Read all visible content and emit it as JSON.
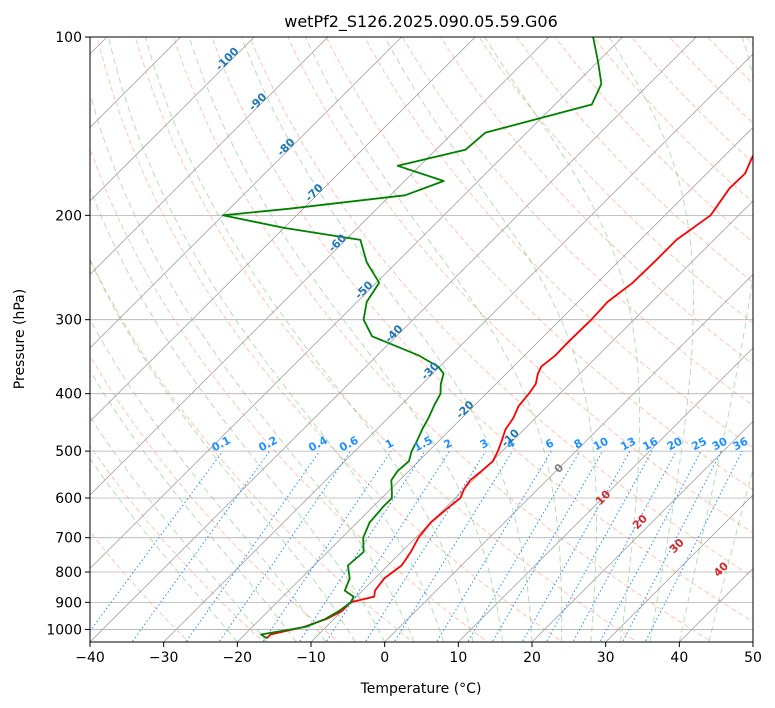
{
  "chart_data": {
    "type": "line",
    "title": "wetPf2_S126.2025.090.05.59.G06",
    "xlabel": "Temperature (°C)",
    "ylabel": "Pressure (hPa)",
    "xlim": [
      -40,
      50
    ],
    "ylim": [
      1050,
      100
    ],
    "y_scale": "log",
    "grid": true,
    "x_ticks": [
      "−40",
      "−30",
      "−20",
      "−10",
      "0",
      "10",
      "20",
      "30",
      "40",
      "50"
    ],
    "y_ticks": [
      "100",
      "200",
      "300",
      "400",
      "500",
      "600",
      "700",
      "800",
      "900",
      "1000"
    ],
    "x_tick_values": [
      -40,
      -30,
      -20,
      -10,
      0,
      10,
      20,
      30,
      40,
      50
    ],
    "y_tick_values": [
      100,
      200,
      300,
      400,
      500,
      600,
      700,
      800,
      900,
      1000
    ],
    "skew_factor": 35,
    "series": [
      {
        "color": "#ff0000",
        "p": [
          1035,
          1020,
          990,
          960,
          930,
          900,
          880,
          860,
          820,
          780,
          740,
          700,
          660,
          620,
          600,
          580,
          560,
          540,
          520,
          500,
          480,
          460,
          440,
          420,
          400,
          385,
          370,
          360,
          345,
          330,
          300,
          280,
          260,
          240,
          220,
          200,
          180,
          170,
          160,
          150,
          140,
          130,
          120,
          110,
          100
        ],
        "t": [
          -16.5,
          -16.5,
          -13.0,
          -11.0,
          -10.0,
          -10.0,
          -7.6,
          -8.3,
          -8.7,
          -8.1,
          -8.7,
          -9.6,
          -10.0,
          -9.6,
          -9.3,
          -10.0,
          -10.4,
          -10.1,
          -9.9,
          -10.6,
          -11.5,
          -12.5,
          -13.0,
          -13.9,
          -14.2,
          -14.6,
          -15.7,
          -16.2,
          -15.8,
          -15.9,
          -15.8,
          -16.0,
          -15.2,
          -15.1,
          -15.1,
          -13.8,
          -14.9,
          -14.8,
          -16.0,
          -17.0,
          -18.0,
          -19.0,
          -22.0,
          -25.6,
          -29.3
        ]
      },
      {
        "color": "#008000",
        "p": [
          1035,
          1020,
          990,
          960,
          930,
          900,
          880,
          860,
          820,
          780,
          740,
          700,
          660,
          620,
          600,
          580,
          560,
          540,
          520,
          500,
          480,
          460,
          440,
          420,
          400,
          385,
          370,
          360,
          345,
          320,
          300,
          280,
          260,
          240,
          220,
          210,
          200,
          195,
          185,
          175,
          165,
          155,
          145,
          130,
          120,
          110,
          100
        ],
        "t": [
          -16.5,
          -17.8,
          -12.8,
          -11.2,
          -10.4,
          -10.0,
          -10.4,
          -12.4,
          -13.4,
          -15.4,
          -15.1,
          -17.1,
          -18.3,
          -18.6,
          -18.6,
          -19.8,
          -21.1,
          -21.5,
          -21.3,
          -22.3,
          -23.0,
          -23.8,
          -24.5,
          -25.4,
          -26.2,
          -27.5,
          -28.5,
          -30.2,
          -34.3,
          -43.3,
          -46.7,
          -48.7,
          -49.6,
          -54.1,
          -58.0,
          -70.0,
          -80.0,
          -72.0,
          -58.0,
          -54.7,
          -63.0,
          -56.0,
          -55.6,
          -45.0,
          -46.5,
          -50.0,
          -54.0
        ]
      }
    ],
    "isotherm_labels": [
      "-100",
      "-90",
      "-80",
      "-70",
      "-60",
      "-50",
      "-40",
      "-30",
      "-20",
      "-10"
    ],
    "mixing_ratio_labels": [
      "0.1",
      "0.2",
      "0.4",
      "0.6",
      "1",
      "1.5",
      "2",
      "3",
      "4",
      "6",
      "8",
      "10",
      "13",
      "16",
      "20",
      "25",
      "30",
      "36"
    ],
    "moist_adiabat_labels": [
      "0",
      "10",
      "20",
      "30",
      "40"
    ]
  }
}
